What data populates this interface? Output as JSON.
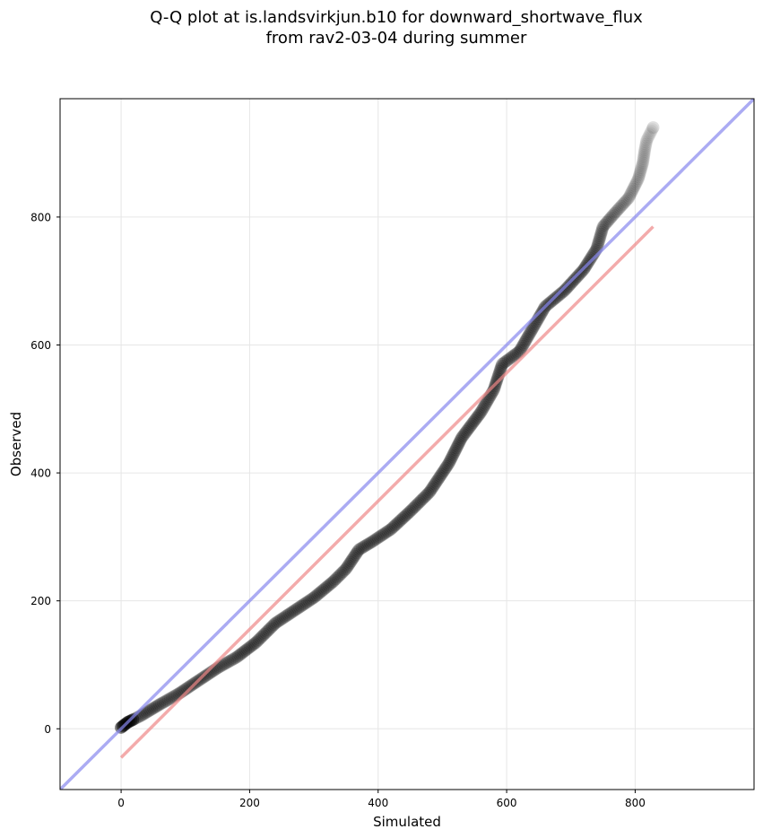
{
  "chart_data": {
    "type": "scatter",
    "title_lines": [
      "Q-Q plot at is.landsvirkjun.b10 for downward_shortwave_flux",
      "from rav2-03-04 during summer"
    ],
    "xlabel": "Simulated",
    "ylabel": "Observed",
    "xlim": [
      -95,
      985
    ],
    "ylim": [
      -95,
      985
    ],
    "xticks": [
      0,
      200,
      400,
      600,
      800
    ],
    "yticks": [
      0,
      200,
      400,
      600,
      800
    ],
    "grid": true,
    "quantile_curve": [
      [
        0,
        2
      ],
      [
        10,
        10
      ],
      [
        30,
        20
      ],
      [
        60,
        38
      ],
      [
        90,
        55
      ],
      [
        120,
        75
      ],
      [
        150,
        95
      ],
      [
        180,
        112
      ],
      [
        210,
        135
      ],
      [
        240,
        165
      ],
      [
        270,
        185
      ],
      [
        300,
        205
      ],
      [
        330,
        230
      ],
      [
        350,
        250
      ],
      [
        370,
        280
      ],
      [
        390,
        292
      ],
      [
        420,
        312
      ],
      [
        450,
        340
      ],
      [
        480,
        370
      ],
      [
        510,
        415
      ],
      [
        530,
        455
      ],
      [
        560,
        495
      ],
      [
        580,
        530
      ],
      [
        593,
        570
      ],
      [
        620,
        590
      ],
      [
        640,
        625
      ],
      [
        660,
        660
      ],
      [
        690,
        685
      ],
      [
        720,
        718
      ],
      [
        740,
        750
      ],
      [
        750,
        785
      ],
      [
        770,
        808
      ],
      [
        790,
        830
      ],
      [
        805,
        860
      ],
      [
        812,
        885
      ],
      [
        815,
        905
      ],
      [
        818,
        920
      ],
      [
        828,
        940
      ]
    ],
    "reference_lines": [
      {
        "color": "#8888ee",
        "points": [
          [
            -95,
            -95
          ],
          [
            985,
            985
          ]
        ]
      },
      {
        "color": "#ee8888",
        "points": [
          [
            0,
            -45
          ],
          [
            828,
            785
          ]
        ]
      }
    ],
    "colors": {
      "points": "#000000",
      "identity_line": "#aaaaf5",
      "fit_line": "#f5aaaa",
      "grid": "#e6e6e6"
    }
  }
}
